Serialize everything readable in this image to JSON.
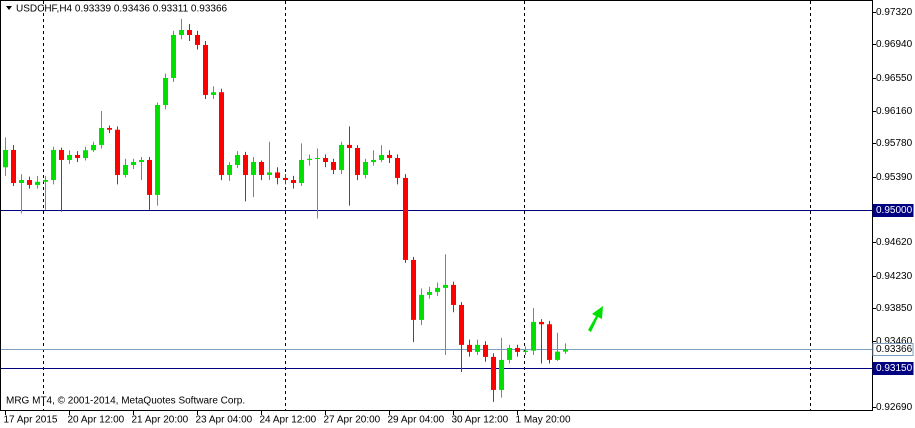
{
  "chart_data": {
    "type": "candlestick",
    "title": "USDCHF,H4  0.93339 0.93436 0.93311 0.93366",
    "annotation": "MRG MT4, © 2001-2014, MetaQuotes Software Corp.",
    "up_color": "#00e000",
    "down_color": "#ff0000",
    "ylim": [
      0.92643,
      0.97461
    ],
    "yticks": [
      {
        "value": 0.9732,
        "label": "0.97320"
      },
      {
        "value": 0.9694,
        "label": "0.96940"
      },
      {
        "value": 0.9655,
        "label": "0.96550"
      },
      {
        "value": 0.9616,
        "label": "0.96160"
      },
      {
        "value": 0.9578,
        "label": "0.95780"
      },
      {
        "value": 0.9539,
        "label": "0.95390"
      },
      {
        "value": 0.9462,
        "label": "0.94620"
      },
      {
        "value": 0.9423,
        "label": "0.94230"
      },
      {
        "value": 0.9385,
        "label": "0.93850"
      },
      {
        "value": 0.9346,
        "label": "0.93460"
      },
      {
        "value": 0.9269,
        "label": "0.92690"
      }
    ],
    "hlines": [
      {
        "value": 0.95,
        "label": "0.95000",
        "color": "#000080",
        "box": "#000080",
        "text_color": "#ffffff",
        "width": 1
      },
      {
        "value": 0.9315,
        "label": "0.93150",
        "color": "#000080",
        "box": "#000080",
        "text_color": "#ffffff",
        "width": 1
      },
      {
        "value": 0.93366,
        "label": "0.93366",
        "color": "#7f9fbf",
        "box": "#ffffff",
        "text_color": "#000000",
        "width": 1
      }
    ],
    "x": [
      "17 Apr 2015",
      null,
      null,
      null,
      null,
      null,
      null,
      null,
      "20 Apr 12:00",
      null,
      null,
      null,
      null,
      null,
      null,
      null,
      "21 Apr 20:00",
      null,
      null,
      null,
      null,
      null,
      null,
      null,
      "23 Apr 04:00",
      null,
      null,
      null,
      null,
      null,
      null,
      null,
      "24 Apr 12:00",
      null,
      null,
      null,
      null,
      null,
      null,
      null,
      "27 Apr 20:00",
      null,
      null,
      null,
      null,
      null,
      null,
      null,
      "29 Apr 04:00",
      null,
      null,
      null,
      null,
      null,
      null,
      null,
      "30 Apr 12:00",
      null,
      null,
      null,
      null,
      null,
      null,
      null,
      "1 May 20:00",
      null,
      null,
      null,
      null,
      null,
      null
    ],
    "open": [
      0.955,
      0.95703,
      0.95316,
      0.95351,
      0.95293,
      0.9533,
      0.95351,
      0.95703,
      0.95586,
      0.95644,
      0.95609,
      0.957,
      0.95762,
      0.95961,
      0.9594,
      0.9541,
      0.95527,
      0.95562,
      0.95586,
      0.95176,
      0.9623,
      0.96547,
      0.97051,
      0.97109,
      0.97051,
      0.96934,
      0.96348,
      0.9638,
      0.9541,
      0.95527,
      0.95644,
      0.9541,
      0.95562,
      0.9541,
      0.9544,
      0.95375,
      0.95351,
      0.95316,
      0.95586,
      0.956,
      0.95609,
      0.95562,
      0.95469,
      0.95762,
      0.95726,
      0.9541,
      0.95562,
      0.95586,
      0.95644,
      0.95609,
      0.95375,
      0.94414,
      0.93711,
      0.94004,
      0.94039,
      0.94086,
      0.94121,
      0.93886,
      0.93418,
      0.93336,
      0.93418,
      0.93277,
      0.9289,
      0.93242,
      0.93382,
      0.93336,
      0.9335,
      0.93687,
      0.9366,
      0.93242,
      0.93339
    ],
    "high": [
      0.9585,
      0.9576,
      0.9542,
      0.9539,
      0.954,
      0.954,
      0.9574,
      0.9573,
      0.957,
      0.9569,
      0.9574,
      0.958,
      0.9616,
      0.9599,
      0.9598,
      0.956,
      0.956,
      0.9562,
      0.9562,
      0.9626,
      0.966,
      0.971,
      0.9724,
      0.9718,
      0.971,
      0.9698,
      0.9645,
      0.9642,
      0.9556,
      0.9569,
      0.9568,
      0.9562,
      0.9558,
      0.958,
      0.955,
      0.9542,
      0.954,
      0.9578,
      0.9565,
      0.9572,
      0.9565,
      0.956,
      0.958,
      0.9598,
      0.9576,
      0.956,
      0.957,
      0.9576,
      0.957,
      0.9565,
      0.9542,
      0.9445,
      0.9408,
      0.941,
      0.9415,
      0.9448,
      0.9416,
      0.9392,
      0.9348,
      0.9348,
      0.9346,
      0.9332,
      0.935,
      0.9342,
      0.9342,
      0.934,
      0.9385,
      0.9372,
      0.937,
      0.9356,
      0.93436
    ],
    "low": [
      0.954,
      0.9528,
      0.9496,
      0.9525,
      0.9525,
      0.95,
      0.953,
      0.9498,
      0.9554,
      0.9556,
      0.9558,
      0.9568,
      0.9572,
      0.959,
      0.953,
      0.9538,
      0.9548,
      0.9535,
      0.95,
      0.9505,
      0.9618,
      0.965,
      0.97,
      0.9698,
      0.9688,
      0.963,
      0.963,
      0.9535,
      0.9534,
      0.9549,
      0.951,
      0.9515,
      0.9535,
      0.9535,
      0.953,
      0.953,
      0.9525,
      0.9528,
      0.9552,
      0.949,
      0.955,
      0.9542,
      0.9542,
      0.9505,
      0.9535,
      0.9537,
      0.9552,
      0.9556,
      0.9555,
      0.953,
      0.9438,
      0.9345,
      0.9365,
      0.9396,
      0.9399,
      0.933,
      0.938,
      0.931,
      0.9328,
      0.933,
      0.9322,
      0.9275,
      0.928,
      0.932,
      0.9328,
      0.933,
      0.933,
      0.932,
      0.932,
      0.9323,
      0.93311
    ],
    "close": [
      0.95703,
      0.95316,
      0.95351,
      0.95293,
      0.9533,
      0.95351,
      0.95703,
      0.95586,
      0.95644,
      0.95609,
      0.957,
      0.95762,
      0.95961,
      0.9594,
      0.9541,
      0.95527,
      0.95562,
      0.95586,
      0.95176,
      0.9623,
      0.96547,
      0.97051,
      0.97109,
      0.97051,
      0.96934,
      0.96348,
      0.9638,
      0.9541,
      0.95527,
      0.95644,
      0.9541,
      0.95562,
      0.9541,
      0.9544,
      0.95375,
      0.95351,
      0.95316,
      0.95586,
      0.956,
      0.95609,
      0.95562,
      0.95469,
      0.95762,
      0.95726,
      0.9541,
      0.95562,
      0.95586,
      0.95644,
      0.95609,
      0.95375,
      0.94414,
      0.93711,
      0.94004,
      0.94039,
      0.94086,
      0.94121,
      0.93886,
      0.93418,
      0.93336,
      0.93418,
      0.93277,
      0.9289,
      0.93242,
      0.93382,
      0.93336,
      0.9335,
      0.93687,
      0.9366,
      0.93242,
      0.93339,
      0.93366
    ]
  }
}
